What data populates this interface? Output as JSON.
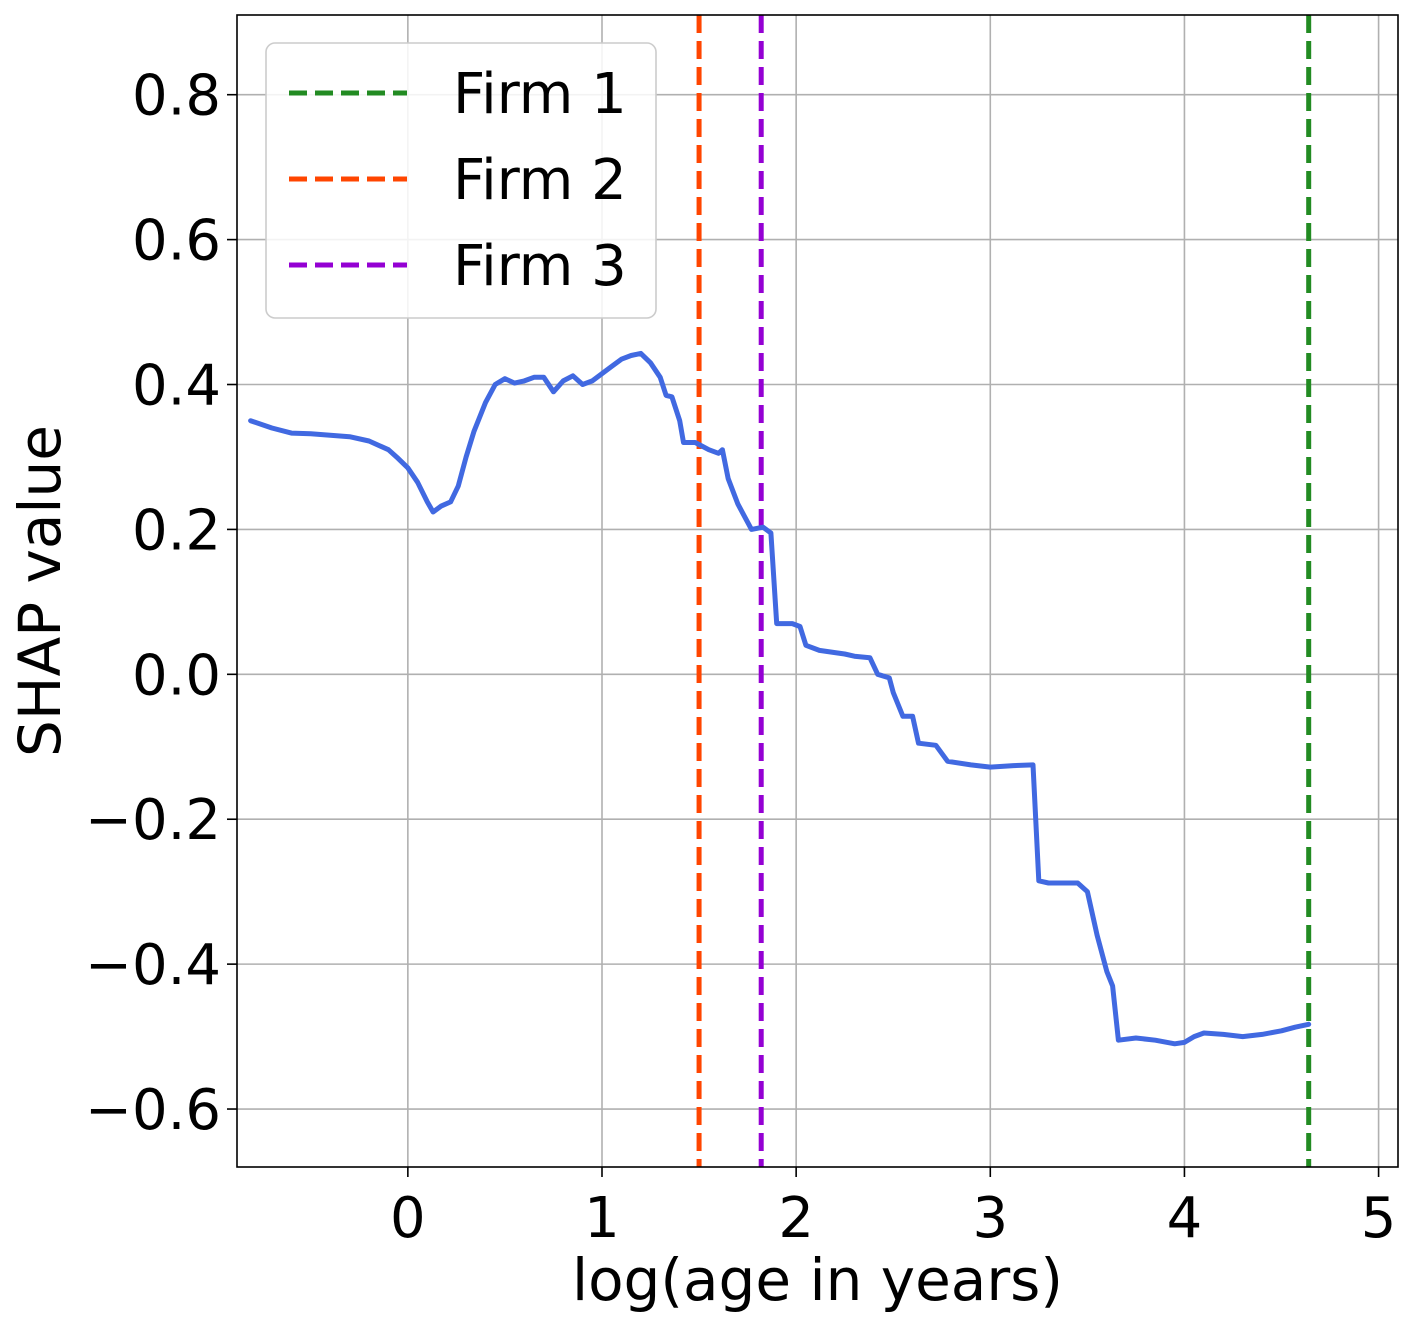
{
  "chart_data": {
    "type": "line",
    "title": "",
    "xlabel": "log(age in years)",
    "ylabel": "SHAP value",
    "xlim": [
      -0.88,
      5.1
    ],
    "ylim": [
      -0.68,
      0.91
    ],
    "x_ticks": [
      0,
      1,
      2,
      3,
      4,
      5
    ],
    "x_tick_labels": [
      "0",
      "1",
      "2",
      "3",
      "4",
      "5"
    ],
    "y_ticks": [
      -0.6,
      -0.4,
      -0.2,
      0.0,
      0.2,
      0.4,
      0.6,
      0.8
    ],
    "y_tick_labels": [
      "−0.6",
      "−0.4",
      "−0.2",
      "0.0",
      "0.2",
      "0.4",
      "0.6",
      "0.8"
    ],
    "grid": true,
    "legend_position": "top-left",
    "series": [
      {
        "color": "#4169e1",
        "points": [
          [
            -0.81,
            0.35
          ],
          [
            -0.7,
            0.34
          ],
          [
            -0.6,
            0.333
          ],
          [
            -0.5,
            0.332
          ],
          [
            -0.4,
            0.33
          ],
          [
            -0.3,
            0.328
          ],
          [
            -0.2,
            0.322
          ],
          [
            -0.1,
            0.31
          ],
          [
            -0.05,
            0.298
          ],
          [
            0.0,
            0.285
          ],
          [
            0.05,
            0.265
          ],
          [
            0.1,
            0.238
          ],
          [
            0.13,
            0.224
          ],
          [
            0.17,
            0.232
          ],
          [
            0.22,
            0.238
          ],
          [
            0.26,
            0.26
          ],
          [
            0.3,
            0.3
          ],
          [
            0.34,
            0.335
          ],
          [
            0.4,
            0.375
          ],
          [
            0.45,
            0.4
          ],
          [
            0.5,
            0.408
          ],
          [
            0.55,
            0.402
          ],
          [
            0.6,
            0.405
          ],
          [
            0.65,
            0.41
          ],
          [
            0.7,
            0.41
          ],
          [
            0.75,
            0.39
          ],
          [
            0.8,
            0.405
          ],
          [
            0.85,
            0.412
          ],
          [
            0.9,
            0.4
          ],
          [
            0.95,
            0.405
          ],
          [
            1.0,
            0.415
          ],
          [
            1.05,
            0.425
          ],
          [
            1.1,
            0.435
          ],
          [
            1.15,
            0.44
          ],
          [
            1.2,
            0.443
          ],
          [
            1.25,
            0.43
          ],
          [
            1.3,
            0.41
          ],
          [
            1.33,
            0.385
          ],
          [
            1.36,
            0.383
          ],
          [
            1.4,
            0.35
          ],
          [
            1.42,
            0.32
          ],
          [
            1.48,
            0.32
          ],
          [
            1.55,
            0.31
          ],
          [
            1.6,
            0.305
          ],
          [
            1.62,
            0.31
          ],
          [
            1.65,
            0.27
          ],
          [
            1.7,
            0.235
          ],
          [
            1.73,
            0.22
          ],
          [
            1.77,
            0.2
          ],
          [
            1.83,
            0.203
          ],
          [
            1.87,
            0.195
          ],
          [
            1.9,
            0.07
          ],
          [
            1.98,
            0.07
          ],
          [
            2.02,
            0.066
          ],
          [
            2.05,
            0.04
          ],
          [
            2.12,
            0.033
          ],
          [
            2.2,
            0.03
          ],
          [
            2.25,
            0.028
          ],
          [
            2.3,
            0.025
          ],
          [
            2.38,
            0.023
          ],
          [
            2.42,
            0.0
          ],
          [
            2.48,
            -0.005
          ],
          [
            2.5,
            -0.025
          ],
          [
            2.55,
            -0.058
          ],
          [
            2.6,
            -0.058
          ],
          [
            2.63,
            -0.095
          ],
          [
            2.72,
            -0.098
          ],
          [
            2.78,
            -0.12
          ],
          [
            2.9,
            -0.125
          ],
          [
            3.0,
            -0.128
          ],
          [
            3.12,
            -0.126
          ],
          [
            3.22,
            -0.125
          ],
          [
            3.25,
            -0.285
          ],
          [
            3.3,
            -0.288
          ],
          [
            3.45,
            -0.288
          ],
          [
            3.5,
            -0.3
          ],
          [
            3.55,
            -0.36
          ],
          [
            3.6,
            -0.41
          ],
          [
            3.63,
            -0.43
          ],
          [
            3.66,
            -0.505
          ],
          [
            3.75,
            -0.502
          ],
          [
            3.85,
            -0.505
          ],
          [
            3.95,
            -0.51
          ],
          [
            4.0,
            -0.508
          ],
          [
            4.05,
            -0.5
          ],
          [
            4.1,
            -0.495
          ],
          [
            4.2,
            -0.497
          ],
          [
            4.3,
            -0.5
          ],
          [
            4.4,
            -0.497
          ],
          [
            4.5,
            -0.492
          ],
          [
            4.57,
            -0.487
          ],
          [
            4.64,
            -0.483
          ]
        ]
      }
    ],
    "vlines": [
      {
        "name": "Firm 1",
        "x": 4.64,
        "color": "#228b22"
      },
      {
        "name": "Firm 2",
        "x": 1.5,
        "color": "#ff4500"
      },
      {
        "name": "Firm 3",
        "x": 1.82,
        "color": "#9400d3"
      }
    ]
  }
}
